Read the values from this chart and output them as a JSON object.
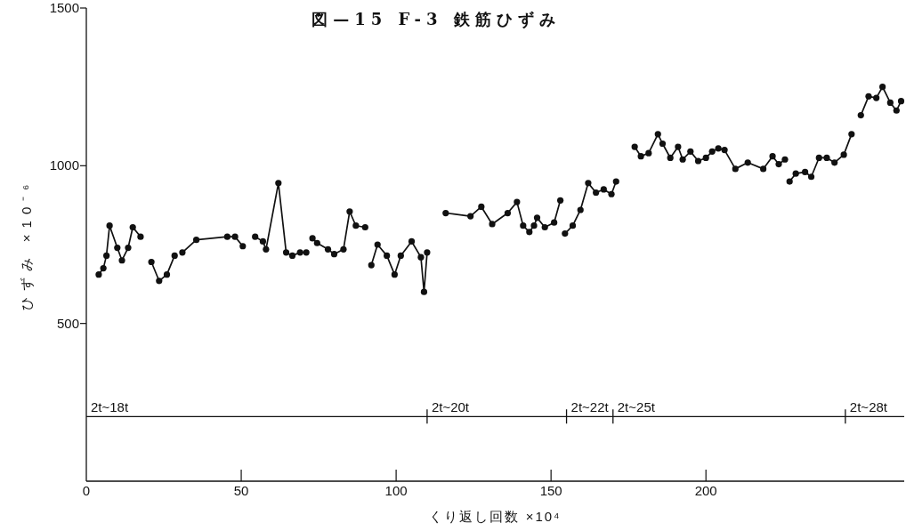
{
  "chart_data": {
    "type": "line",
    "title": "図—15 F-3 鉄筋ひずみ",
    "xlabel": "くり返し回数 ×10⁴",
    "ylabel": "ひずみ ×10⁻⁶",
    "xlim": [
      0,
      264
    ],
    "ylim": [
      0,
      1500
    ],
    "xticks": [
      0,
      50,
      100,
      150,
      200
    ],
    "yticks": [
      500,
      1000,
      1500
    ],
    "marker": "circle",
    "series": [
      {
        "color": "#111111",
        "x": [
          4,
          5.5,
          6.5,
          7.5,
          10,
          11.5,
          13.5,
          15,
          17.5
        ],
        "values": [
          655,
          675,
          715,
          810,
          740,
          700,
          740,
          805,
          775
        ]
      },
      {
        "color": "#111111",
        "x": [
          21,
          23.5,
          26,
          28.5
        ],
        "values": [
          695,
          635,
          655,
          715
        ]
      },
      {
        "color": "#111111",
        "x": [
          31,
          35.5,
          45.5,
          48,
          50.5
        ],
        "values": [
          725,
          765,
          775,
          775,
          745
        ]
      },
      {
        "color": "#111111",
        "x": [
          54.5,
          57,
          58,
          62,
          64.5,
          66.5,
          69,
          71
        ],
        "values": [
          775,
          760,
          735,
          945,
          725,
          715,
          725,
          725
        ]
      },
      {
        "color": "#111111",
        "x": [
          73,
          74.5,
          78,
          80,
          83,
          85,
          87,
          90
        ],
        "values": [
          770,
          755,
          735,
          720,
          735,
          855,
          810,
          805
        ]
      },
      {
        "color": "#111111",
        "x": [
          92,
          94,
          97,
          99.5,
          101.5,
          105,
          108,
          109,
          110
        ],
        "values": [
          685,
          750,
          715,
          655,
          715,
          760,
          710,
          600,
          725
        ]
      },
      {
        "color": "#111111",
        "x": [
          116,
          124,
          127.5,
          131,
          136,
          139,
          141,
          143,
          144.5,
          145.5,
          148,
          151,
          153
        ],
        "values": [
          850,
          840,
          870,
          815,
          850,
          885,
          810,
          790,
          810,
          835,
          805,
          820,
          890
        ]
      },
      {
        "color": "#111111",
        "x": [
          154.5,
          157,
          159.5,
          162,
          164.5,
          167,
          169.5,
          171
        ],
        "values": [
          785,
          810,
          860,
          945,
          915,
          925,
          910,
          950
        ]
      },
      {
        "color": "#111111",
        "x": [
          177,
          179,
          181.5,
          184.5,
          186,
          188.5,
          191,
          192.5,
          195,
          197.5,
          200,
          202,
          204,
          206,
          209.5,
          213.5,
          218.5,
          221.5,
          223.5,
          225.5
        ],
        "values": [
          1060,
          1030,
          1040,
          1100,
          1070,
          1025,
          1060,
          1020,
          1045,
          1015,
          1025,
          1045,
          1055,
          1050,
          990,
          1010,
          990,
          1030,
          1005,
          1020
        ]
      },
      {
        "color": "#111111",
        "x": [
          227,
          229,
          232,
          234,
          236.5,
          239,
          241.5,
          244.5,
          247
        ],
        "values": [
          950,
          975,
          980,
          965,
          1025,
          1025,
          1010,
          1035,
          1100
        ]
      },
      {
        "color": "#111111",
        "x": [
          250,
          252.5,
          255,
          257,
          259.5,
          261.5,
          263
        ],
        "values": [
          1160,
          1220,
          1215,
          1250,
          1200,
          1175,
          1205
        ]
      }
    ],
    "ref_lines": [
      {
        "axis": "y",
        "value": 205
      }
    ],
    "annotations": [
      {
        "text": "2t~18t",
        "x": 0,
        "y": 205
      },
      {
        "text": "2t~20t",
        "x": 110,
        "y": 205
      },
      {
        "text": "2t~22t",
        "x": 155,
        "y": 205
      },
      {
        "text": "2t~25t",
        "x": 170,
        "y": 205
      },
      {
        "text": "2t~28t",
        "x": 245,
        "y": 205
      }
    ]
  }
}
